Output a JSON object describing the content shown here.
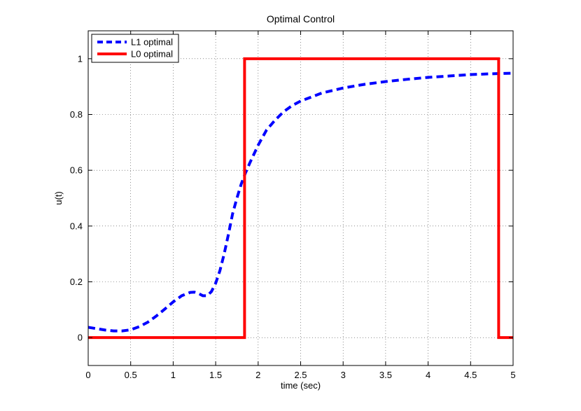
{
  "chart_data": {
    "type": "line",
    "title": "Optimal Control",
    "xlabel": "time (sec)",
    "ylabel": "u(t)",
    "xlim": [
      0,
      5
    ],
    "ylim": [
      -0.1,
      1.1
    ],
    "grid": true,
    "legend_position": "top-left",
    "x_ticks": [
      "0",
      "0.5",
      "1",
      "1.5",
      "2",
      "2.5",
      "3",
      "3.5",
      "4",
      "4.5",
      "5"
    ],
    "y_ticks": [
      "0",
      "0.2",
      "0.4",
      "0.6",
      "0.8",
      "1"
    ],
    "series": [
      {
        "name": "L1 optimal",
        "color": "#0000ff",
        "style": "dashed",
        "x": [
          0,
          0.1,
          0.2,
          0.3,
          0.4,
          0.5,
          0.6,
          0.7,
          0.8,
          0.9,
          1.0,
          1.1,
          1.2,
          1.25,
          1.3,
          1.35,
          1.4,
          1.45,
          1.5,
          1.55,
          1.6,
          1.65,
          1.7,
          1.75,
          1.8,
          1.85,
          1.9,
          2.0,
          2.1,
          2.2,
          2.3,
          2.4,
          2.5,
          2.75,
          3.0,
          3.25,
          3.5,
          3.75,
          4.0,
          4.25,
          4.5,
          4.75,
          5.0
        ],
        "y": [
          0.037,
          0.032,
          0.027,
          0.024,
          0.024,
          0.028,
          0.039,
          0.055,
          0.077,
          0.102,
          0.128,
          0.15,
          0.162,
          0.163,
          0.158,
          0.15,
          0.15,
          0.165,
          0.195,
          0.24,
          0.3,
          0.37,
          0.445,
          0.5,
          0.55,
          0.59,
          0.625,
          0.69,
          0.745,
          0.78,
          0.81,
          0.832,
          0.848,
          0.877,
          0.895,
          0.908,
          0.918,
          0.926,
          0.933,
          0.938,
          0.943,
          0.946,
          0.948
        ]
      },
      {
        "name": "L0 optimal",
        "color": "#ff0000",
        "style": "solid",
        "x": [
          0,
          1.84,
          1.84,
          4.83,
          4.83,
          5.0
        ],
        "y": [
          0,
          0,
          1,
          1,
          0,
          0
        ]
      }
    ]
  }
}
